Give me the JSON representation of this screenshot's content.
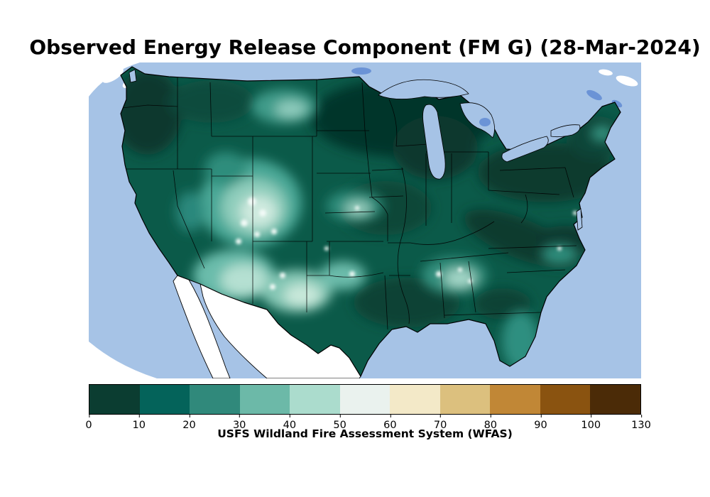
{
  "title": "Observed Energy Release Component (FM G) (28-Mar-2024)",
  "chart_data": {
    "type": "heatmap",
    "title": "Observed Energy Release Component (FM G) (28-Mar-2024)",
    "variable": "Energy Release Component (FM G)",
    "date": "28-Mar-2024",
    "colorbar": {
      "label": "USFS Wildland Fire Assessment System (WFAS)",
      "orientation": "horizontal",
      "tick_labels": [
        "0",
        "10",
        "20",
        "30",
        "40",
        "50",
        "60",
        "70",
        "80",
        "90",
        "100",
        "130"
      ],
      "boundaries": [
        0,
        10,
        20,
        30,
        40,
        50,
        60,
        70,
        80,
        90,
        100,
        130
      ],
      "segment_colors": [
        "#0b3d31",
        "#04635a",
        "#30897b",
        "#6cb9a8",
        "#abdccd",
        "#eaf2ee",
        "#f3e9c8",
        "#dcc07e",
        "#c18736",
        "#8a5310",
        "#4b2b07"
      ]
    },
    "map_colors": {
      "water_and_non_us": "#a6c3e6",
      "mexico_mask": "#ffffff",
      "land_base": "#0b5a49",
      "state_border": "#000000"
    }
  }
}
